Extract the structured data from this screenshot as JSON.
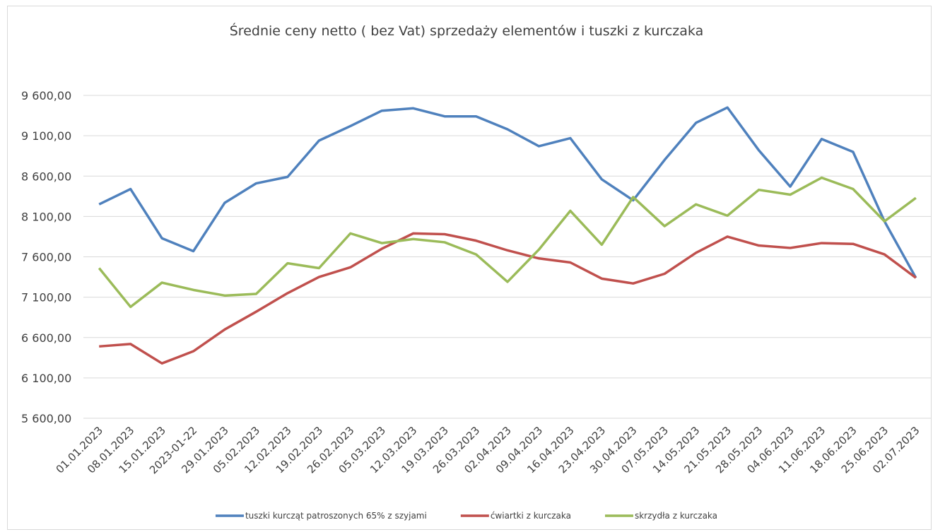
{
  "chart_data": {
    "type": "line",
    "title": "Średnie ceny netto ( bez Vat) sprzedaży elementów i tuszki z kurczaka",
    "categories": [
      "01.01.2023",
      "08.01.2023",
      "15.01.2023",
      "2023-01-22",
      "29.01.2023",
      "05.02.2023",
      "12.02.2023",
      "19.02.2023",
      "26.02.2023",
      "05.03.2023",
      "12.03.2023",
      "19.03.2023",
      "26.03.2023",
      "02.04.2023",
      "09.04.2023",
      "16.04.2023",
      "23.04.2023",
      "30.04.2023",
      "07.05.2023",
      "14.05.2023",
      "21.05.2023",
      "28.05.2023",
      "04.06.2023",
      "11.06.2023",
      "18.06.2023",
      "25.06.2023",
      "02.07.2023"
    ],
    "series": [
      {
        "name": "tuszki kurcząt patroszonych 65% z szyjami",
        "color": "#4f81bd",
        "values": [
          8250,
          8440,
          7830,
          7670,
          8270,
          8510,
          8590,
          9040,
          9220,
          9410,
          9440,
          9340,
          9340,
          9180,
          8970,
          9070,
          8560,
          8300,
          8800,
          9260,
          9450,
          8920,
          8470,
          9060,
          8900,
          8040,
          7340
        ]
      },
      {
        "name": "ćwiartki z kurczaka",
        "color": "#c0504d",
        "values": [
          6490,
          6520,
          6280,
          6430,
          6700,
          6920,
          7150,
          7350,
          7470,
          7700,
          7890,
          7880,
          7800,
          7680,
          7580,
          7530,
          7330,
          7270,
          7390,
          7650,
          7850,
          7740,
          7710,
          7770,
          7760,
          7630,
          7340
        ]
      },
      {
        "name": "skrzydła z kurczaka",
        "color": "#9bbb59",
        "values": [
          7460,
          6980,
          7280,
          7190,
          7120,
          7140,
          7520,
          7460,
          7890,
          7770,
          7820,
          7780,
          7630,
          7290,
          7690,
          8170,
          7750,
          8340,
          7980,
          8250,
          8110,
          8430,
          8370,
          8580,
          8440,
          8040,
          8330
        ]
      }
    ],
    "ylim": [
      5600,
      9600
    ],
    "yticks": [
      {
        "value": 5600,
        "label": "5 600,00"
      },
      {
        "value": 6100,
        "label": "6 100,00"
      },
      {
        "value": 6600,
        "label": "6 600,00"
      },
      {
        "value": 7100,
        "label": "7 100,00"
      },
      {
        "value": 7600,
        "label": "7 600,00"
      },
      {
        "value": 8100,
        "label": "8 100,00"
      },
      {
        "value": 8600,
        "label": "8 600,00"
      },
      {
        "value": 9100,
        "label": "9 100,00"
      },
      {
        "value": 9600,
        "label": "9 600,00"
      }
    ],
    "grid": true,
    "legend": "bottom"
  }
}
